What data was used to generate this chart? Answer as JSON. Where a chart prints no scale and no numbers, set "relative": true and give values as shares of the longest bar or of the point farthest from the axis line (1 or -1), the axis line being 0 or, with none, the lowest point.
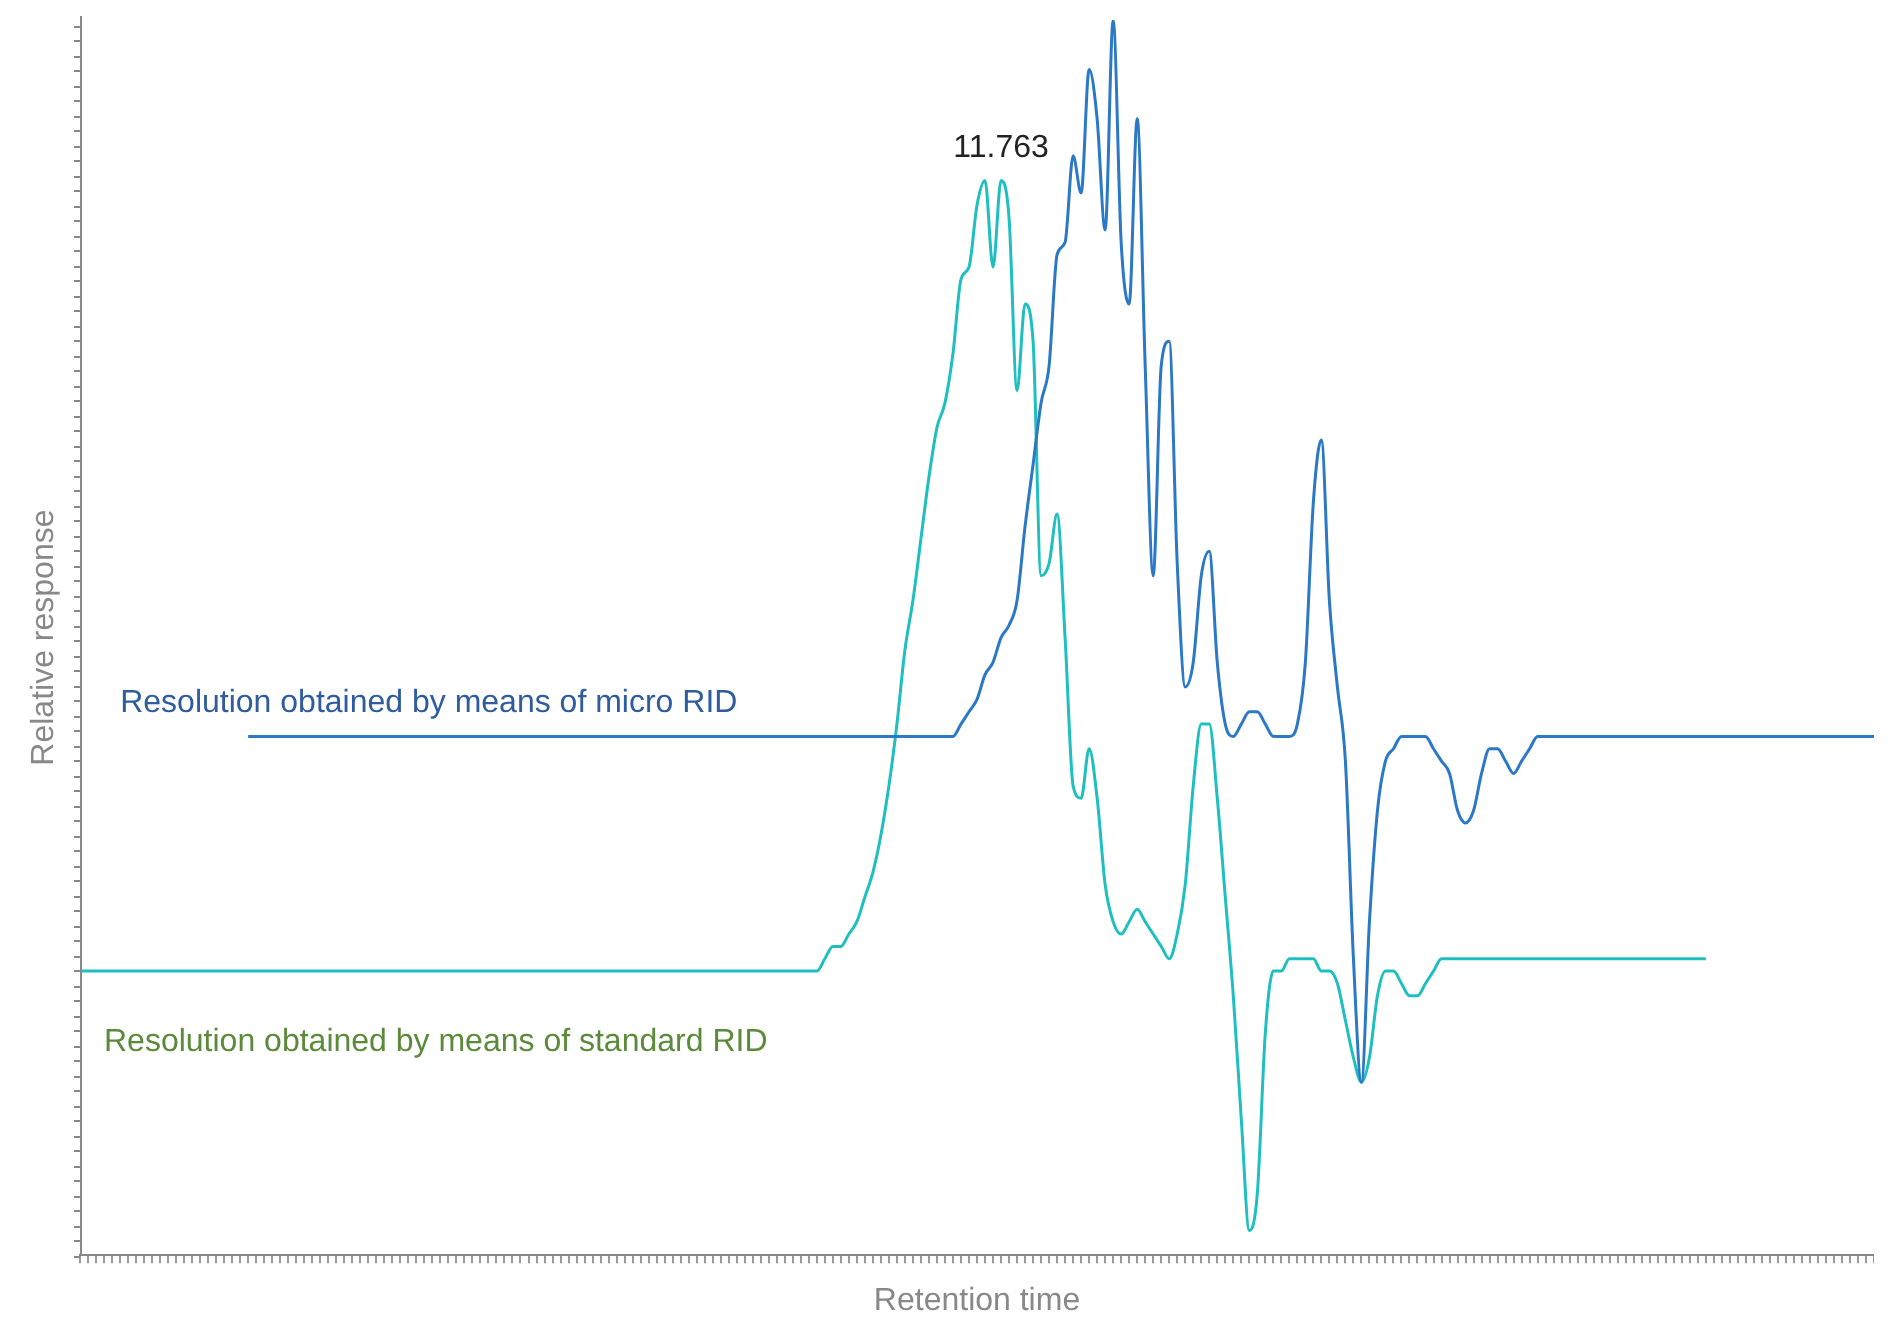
{
  "chart_data": {
    "type": "line",
    "relative": true,
    "xlabel": "Retention time",
    "ylabel": "Relative response",
    "categories": [
      null,
      null,
      null,
      null,
      null,
      null,
      null,
      null,
      null,
      null,
      null,
      null,
      null,
      null,
      null,
      null,
      null,
      null,
      null,
      null,
      null,
      null,
      null,
      null,
      null,
      null,
      null,
      null,
      null,
      null,
      null,
      null,
      null,
      null,
      null,
      null,
      null,
      null,
      null,
      null,
      null,
      null,
      null,
      null,
      null,
      null,
      null,
      null,
      null,
      null,
      null,
      null,
      null,
      null,
      null,
      null,
      null,
      null,
      null,
      null,
      null,
      null,
      null,
      null,
      null,
      null,
      null,
      null,
      null,
      null,
      null,
      null,
      null,
      null,
      null,
      null,
      null,
      null,
      null,
      null,
      null,
      null,
      null,
      null,
      null,
      null,
      null,
      null,
      null,
      null,
      null,
      null,
      null,
      null,
      null,
      null,
      null,
      null,
      null,
      null,
      null,
      null,
      null,
      null,
      null,
      null,
      null,
      null,
      null,
      null,
      null,
      null,
      null,
      null,
      null,
      null,
      null,
      null,
      null,
      null,
      null,
      null,
      null,
      null,
      null,
      null,
      null,
      null,
      null,
      null,
      null,
      null,
      null,
      null,
      null,
      null,
      null,
      null,
      null,
      null,
      null,
      null,
      null,
      null,
      null,
      null,
      null,
      null,
      null,
      null,
      null,
      null,
      null,
      null,
      null,
      null,
      null,
      null,
      null,
      null,
      null,
      null,
      null,
      null,
      null,
      null,
      null,
      null,
      null,
      null,
      null,
      null,
      null,
      null,
      null,
      null,
      null,
      null,
      null,
      null,
      null,
      null,
      null,
      null,
      null,
      null,
      null,
      null,
      null,
      null,
      null,
      null,
      null,
      null,
      null,
      null,
      null,
      null,
      null,
      null,
      null,
      null,
      null,
      null,
      null,
      null,
      null,
      null,
      null,
      null,
      null,
      null,
      null,
      null,
      null,
      null,
      null,
      null,
      null,
      null,
      null,
      null,
      null,
      null,
      null
    ],
    "series": [
      {
        "name": "Resolution obtained by means of micro RID",
        "color": "#2a78c6",
        "values": [
          null,
          null,
          null,
          null,
          null,
          null,
          null,
          null,
          null,
          null,
          null,
          null,
          null,
          null,
          null,
          null,
          null,
          null,
          null,
          null,
          null,
          0.42,
          0.42,
          0.42,
          0.42,
          0.42,
          0.42,
          0.42,
          0.42,
          0.42,
          0.42,
          0.42,
          0.42,
          0.42,
          0.42,
          0.42,
          0.42,
          0.42,
          0.42,
          0.42,
          0.42,
          0.42,
          0.42,
          0.42,
          0.42,
          0.42,
          0.42,
          0.42,
          0.42,
          0.42,
          0.42,
          0.42,
          0.42,
          0.42,
          0.42,
          0.42,
          0.42,
          0.42,
          0.42,
          0.42,
          0.42,
          0.42,
          0.42,
          0.42,
          0.42,
          0.42,
          0.42,
          0.42,
          0.42,
          0.42,
          0.42,
          0.42,
          0.42,
          0.42,
          0.42,
          0.42,
          0.42,
          0.42,
          0.42,
          0.42,
          0.42,
          0.42,
          0.42,
          0.42,
          0.42,
          0.42,
          0.42,
          0.42,
          0.42,
          0.42,
          0.42,
          0.42,
          0.42,
          0.42,
          0.42,
          0.42,
          0.42,
          0.42,
          0.42,
          0.42,
          0.42,
          0.42,
          0.42,
          0.42,
          0.42,
          0.42,
          0.42,
          0.42,
          0.42,
          0.42,
          0.43,
          0.44,
          0.45,
          0.47,
          0.48,
          0.5,
          0.51,
          0.53,
          0.59,
          0.64,
          0.69,
          0.72,
          0.81,
          0.82,
          0.89,
          0.86,
          0.96,
          0.92,
          0.83,
          1.0,
          0.82,
          0.77,
          0.92,
          0.72,
          0.55,
          0.72,
          0.74,
          0.56,
          0.46,
          0.48,
          0.55,
          0.57,
          0.48,
          0.43,
          0.42,
          0.43,
          0.44,
          0.44,
          0.43,
          0.42,
          0.42,
          0.42,
          0.43,
          0.48,
          0.61,
          0.66,
          0.53,
          0.46,
          0.4,
          0.24,
          0.14,
          0.27,
          0.36,
          0.4,
          0.41,
          0.42,
          0.42,
          0.42,
          0.42,
          0.41,
          0.4,
          0.39,
          0.36,
          0.35,
          0.36,
          0.39,
          0.41,
          0.41,
          0.4,
          0.39,
          0.4,
          0.41,
          0.42,
          0.42,
          0.42,
          0.42,
          0.42,
          0.42,
          0.42,
          0.42,
          0.42,
          0.42,
          0.42,
          0.42,
          0.42,
          0.42,
          0.42,
          0.42,
          0.42,
          0.42,
          0.42,
          0.42,
          0.42,
          0.42,
          0.42,
          0.42,
          0.42,
          0.42,
          0.42,
          0.42,
          0.42,
          0.42,
          0.42,
          0.42,
          0.42,
          0.42,
          0.42,
          0.42,
          0.42,
          0.42,
          0.42,
          0.42,
          0.42,
          0.42,
          0.42
        ]
      },
      {
        "name": "Resolution obtained by means of standard RID",
        "color": "#1fbfc0",
        "values": [
          0.23,
          0.23,
          0.23,
          0.23,
          0.23,
          0.23,
          0.23,
          0.23,
          0.23,
          0.23,
          0.23,
          0.23,
          0.23,
          0.23,
          0.23,
          0.23,
          0.23,
          0.23,
          0.23,
          0.23,
          0.23,
          0.23,
          0.23,
          0.23,
          0.23,
          0.23,
          0.23,
          0.23,
          0.23,
          0.23,
          0.23,
          0.23,
          0.23,
          0.23,
          0.23,
          0.23,
          0.23,
          0.23,
          0.23,
          0.23,
          0.23,
          0.23,
          0.23,
          0.23,
          0.23,
          0.23,
          0.23,
          0.23,
          0.23,
          0.23,
          0.23,
          0.23,
          0.23,
          0.23,
          0.23,
          0.23,
          0.23,
          0.23,
          0.23,
          0.23,
          0.23,
          0.23,
          0.23,
          0.23,
          0.23,
          0.23,
          0.23,
          0.23,
          0.23,
          0.23,
          0.23,
          0.23,
          0.23,
          0.23,
          0.23,
          0.23,
          0.23,
          0.23,
          0.23,
          0.23,
          0.23,
          0.23,
          0.23,
          0.23,
          0.23,
          0.23,
          0.23,
          0.23,
          0.23,
          0.23,
          0.23,
          0.23,
          0.23,
          0.24,
          0.25,
          0.25,
          0.26,
          0.27,
          0.29,
          0.31,
          0.34,
          0.38,
          0.43,
          0.49,
          0.53,
          0.58,
          0.63,
          0.67,
          0.69,
          0.73,
          0.79,
          0.8,
          0.85,
          0.87,
          0.8,
          0.87,
          0.84,
          0.7,
          0.77,
          0.74,
          0.55,
          0.56,
          0.6,
          0.5,
          0.38,
          0.37,
          0.41,
          0.37,
          0.3,
          0.27,
          0.26,
          0.27,
          0.28,
          0.27,
          0.26,
          0.25,
          0.24,
          0.26,
          0.3,
          0.38,
          0.43,
          0.43,
          0.37,
          0.29,
          0.21,
          0.11,
          0.02,
          0.05,
          0.18,
          0.23,
          0.23,
          0.24,
          0.24,
          0.24,
          0.24,
          0.23,
          0.23,
          0.22,
          0.19,
          0.16,
          0.14,
          0.16,
          0.21,
          0.23,
          0.23,
          0.22,
          0.21,
          0.21,
          0.22,
          0.23,
          0.24,
          0.24,
          0.24,
          0.24,
          0.24,
          0.24,
          0.24,
          0.24,
          0.24,
          0.24,
          0.24,
          0.24,
          0.24,
          0.24,
          0.24,
          0.24,
          0.24,
          0.24,
          0.24,
          0.24,
          0.24,
          0.24,
          0.24,
          0.24,
          0.24,
          0.24,
          0.24,
          0.24,
          0.24,
          0.24,
          0.24,
          0.24,
          0.24,
          0.24,
          null,
          null,
          null,
          null,
          null,
          null,
          null,
          null,
          null,
          null,
          null,
          null,
          null,
          null,
          null,
          null,
          null,
          null,
          null,
          null,
          null
        ]
      }
    ],
    "annotations": [
      "11.763"
    ]
  }
}
